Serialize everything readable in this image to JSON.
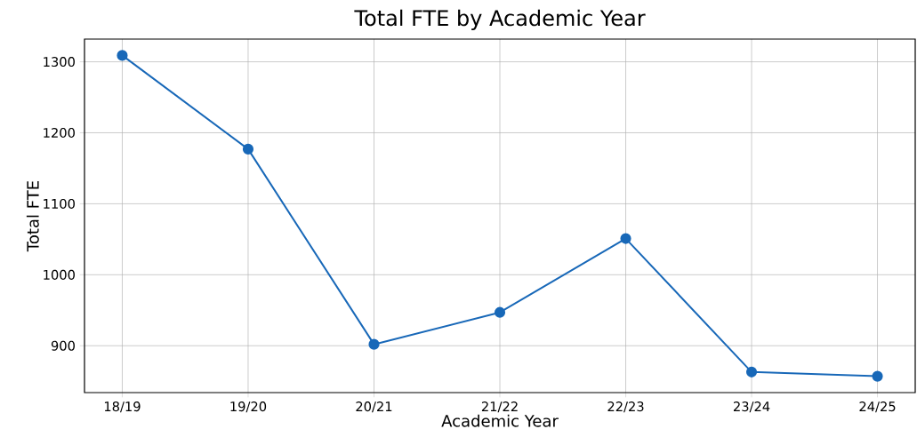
{
  "chart_data": {
    "type": "line",
    "title": "Total FTE by Academic Year",
    "xlabel": "Academic Year",
    "ylabel": "Total FTE",
    "categories": [
      "18/19",
      "19/20",
      "20/21",
      "21/22",
      "22/23",
      "23/24",
      "24/25"
    ],
    "series": [
      {
        "color": "#1868b8",
        "values": [
          1309,
          1177,
          902,
          947,
          1051,
          863,
          857
        ]
      }
    ],
    "ylim": [
      834,
      1332
    ],
    "yticks": [
      900,
      1000,
      1100,
      1200,
      1300
    ],
    "grid": true,
    "marker": "circle",
    "line_style": "solid"
  }
}
